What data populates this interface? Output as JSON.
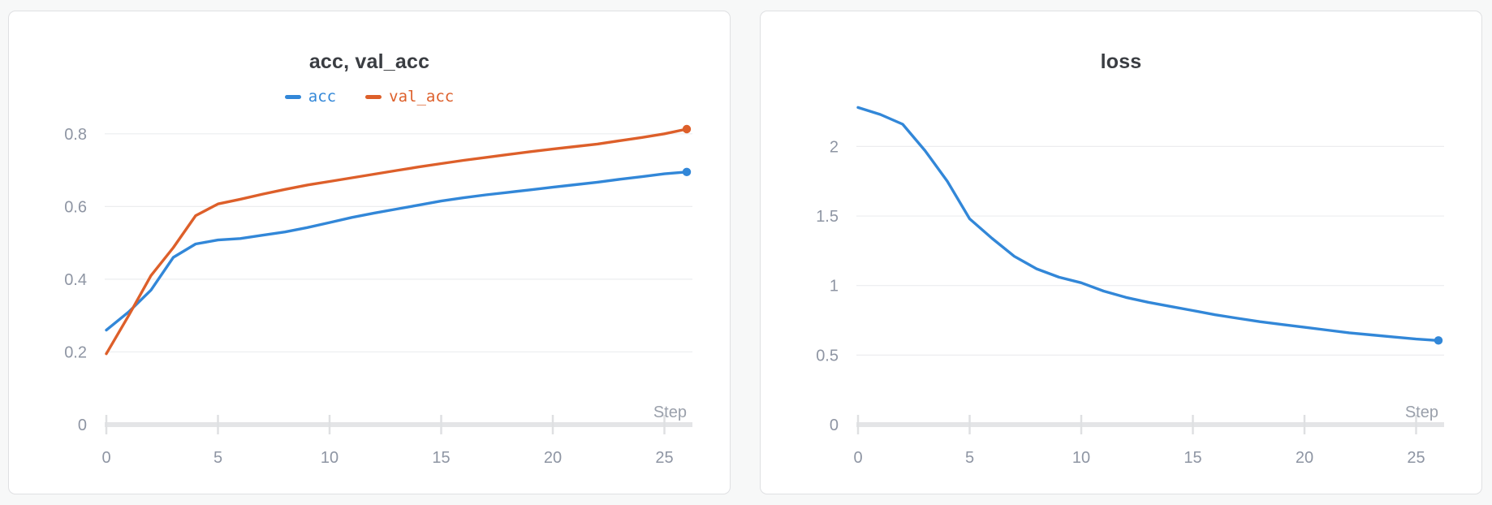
{
  "colors": {
    "page_bg": "#f7f8f8",
    "card_bg": "#ffffff",
    "card_border": "#dfe0e2",
    "title": "#3a3d42",
    "grid": "#ecedef",
    "axis": "#e4e5e7",
    "tick": "#dfe0e2",
    "tick_label": "#8e95a3",
    "step_label": "#9aa0ab",
    "series_blue": "#3287d8",
    "series_orange": "#dd5f2a"
  },
  "chart_data": [
    {
      "type": "line",
      "title": "acc, val_acc",
      "xlabel": "Step",
      "legend_position": "top",
      "grid": true,
      "end_dot": true,
      "xlim": [
        0,
        26
      ],
      "ylim": [
        0,
        0.88
      ],
      "xticks": [
        0,
        5,
        10,
        15,
        20,
        25
      ],
      "yticks": [
        0,
        0.2,
        0.4,
        0.6,
        0.8
      ],
      "x": [
        0,
        1,
        2,
        3,
        4,
        5,
        6,
        7,
        8,
        9,
        10,
        11,
        12,
        13,
        14,
        15,
        16,
        17,
        18,
        19,
        20,
        21,
        22,
        23,
        24,
        25,
        26
      ],
      "series": [
        {
          "name": "acc",
          "color": "#3287d8",
          "values": [
            0.26,
            0.31,
            0.37,
            0.46,
            0.497,
            0.508,
            0.512,
            0.521,
            0.53,
            0.542,
            0.556,
            0.57,
            0.582,
            0.593,
            0.604,
            0.615,
            0.624,
            0.632,
            0.639,
            0.646,
            0.653,
            0.66,
            0.667,
            0.675,
            0.682,
            0.69,
            0.695
          ]
        },
        {
          "name": "val_acc",
          "color": "#dd5f2a",
          "values": [
            0.195,
            0.3,
            0.41,
            0.487,
            0.575,
            0.607,
            0.62,
            0.634,
            0.647,
            0.659,
            0.669,
            0.679,
            0.689,
            0.699,
            0.709,
            0.718,
            0.727,
            0.735,
            0.743,
            0.751,
            0.758,
            0.765,
            0.772,
            0.781,
            0.79,
            0.8,
            0.813
          ]
        }
      ]
    },
    {
      "type": "line",
      "title": "loss",
      "xlabel": "Step",
      "legend_position": "none",
      "grid": true,
      "end_dot": true,
      "xlim": [
        0,
        26
      ],
      "ylim": [
        0,
        2.3
      ],
      "xticks": [
        0,
        5,
        10,
        15,
        20,
        25
      ],
      "yticks": [
        0,
        0.5,
        1,
        1.5,
        2
      ],
      "x": [
        0,
        1,
        2,
        3,
        4,
        5,
        6,
        7,
        8,
        9,
        10,
        11,
        12,
        13,
        14,
        15,
        16,
        17,
        18,
        19,
        20,
        21,
        22,
        23,
        24,
        25,
        26
      ],
      "series": [
        {
          "name": "loss",
          "color": "#3287d8",
          "values": [
            2.28,
            2.23,
            2.16,
            1.97,
            1.75,
            1.48,
            1.34,
            1.21,
            1.12,
            1.06,
            1.02,
            0.96,
            0.915,
            0.88,
            0.85,
            0.82,
            0.79,
            0.765,
            0.74,
            0.72,
            0.7,
            0.68,
            0.66,
            0.645,
            0.63,
            0.615,
            0.605
          ]
        }
      ]
    }
  ]
}
